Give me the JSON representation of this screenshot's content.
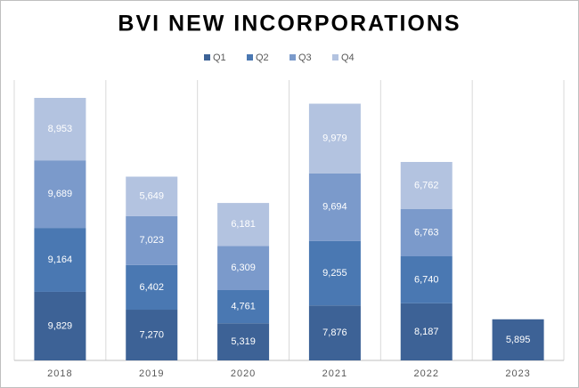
{
  "chart_data": {
    "type": "stacked_bar",
    "title": "BVI NEW INCORPORATIONS",
    "categories": [
      "2018",
      "2019",
      "2020",
      "2021",
      "2022",
      "2023"
    ],
    "series": [
      {
        "name": "Q1",
        "color": "#3d6296",
        "values": [
          9829,
          7270,
          5319,
          7876,
          8187,
          5895
        ],
        "value_labels": [
          "9,829",
          "7,270",
          "5,319",
          "7,876",
          "8,187",
          "5,895"
        ]
      },
      {
        "name": "Q2",
        "color": "#4a78b2",
        "values": [
          9164,
          6402,
          4761,
          9255,
          6740,
          null
        ],
        "value_labels": [
          "9,164",
          "6,402",
          "4,761",
          "9,255",
          "6,740",
          null
        ]
      },
      {
        "name": "Q3",
        "color": "#7b9acb",
        "values": [
          9689,
          7023,
          6309,
          9694,
          6763,
          null
        ],
        "value_labels": [
          "9,689",
          "7,023",
          "6,309",
          "9,694",
          "6,763",
          null
        ]
      },
      {
        "name": "Q4",
        "color": "#b3c3e0",
        "values": [
          8953,
          5649,
          6181,
          9979,
          6762,
          null
        ],
        "value_labels": [
          "8,953",
          "5,649",
          "6,181",
          "9,979",
          "6,762",
          null
        ]
      }
    ]
  }
}
